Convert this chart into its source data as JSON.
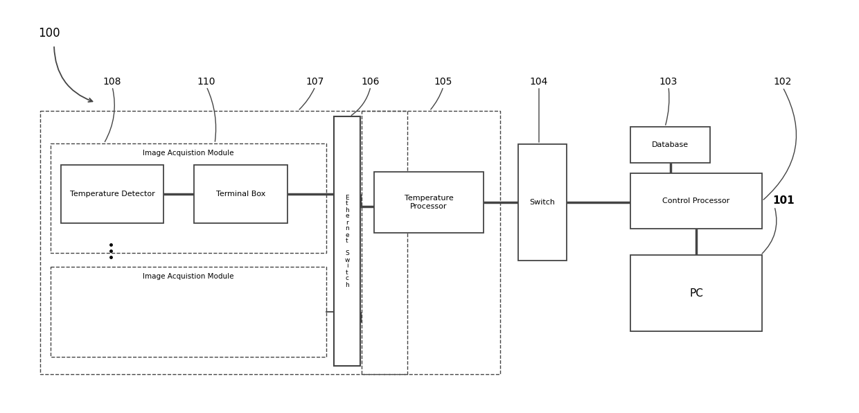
{
  "bg_color": "#ffffff",
  "line_color": "#444444",
  "box_edge": "#444444",
  "label_100": "100",
  "label_101": "101",
  "label_102": "102",
  "label_103": "103",
  "label_104": "104",
  "label_105": "105",
  "label_106": "106",
  "label_107": "107",
  "label_108": "108",
  "label_110": "110",
  "text_temp_detector": "Temperature Detector",
  "text_terminal_box": "Terminal Box",
  "text_image_acq1": "Image Acquistion Module",
  "text_image_acq2": "Image Acquistion Module",
  "text_ethernet": "E\nt\nh\ne\nr\nn\ne\nt\n \nS\nw\ni\nt\nc\nh",
  "text_temp_processor": "Temperature\nProcessor",
  "text_switch": "Switch",
  "text_database": "Database",
  "text_control_processor": "Control Processor",
  "text_pc": "PC",
  "font_size_box": 8,
  "font_size_ref": 10
}
